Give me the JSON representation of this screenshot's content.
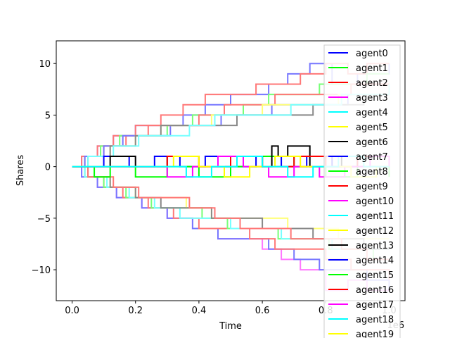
{
  "chart_data": {
    "type": "line",
    "xlabel": "Time",
    "ylabel": "Shares",
    "x_offset_text": "1e6",
    "xlim": [
      -0.05,
      1.05
    ],
    "ylim": [
      -13,
      12.2
    ],
    "x_ticks": [
      0.0,
      0.2,
      0.4,
      0.6,
      0.8,
      1.0
    ],
    "x_tick_labels": [
      "0.0",
      "0.2",
      "0.4",
      "0.6",
      "0.8",
      "1.0"
    ],
    "y_ticks": [
      10,
      5,
      0,
      -5,
      -10
    ],
    "y_tick_labels": [
      "10",
      "5",
      "0",
      "−5",
      "−10"
    ],
    "grid": false,
    "legend_position": "upper-right",
    "legend": [
      {
        "label": "agent0",
        "color": "#0000ff"
      },
      {
        "label": "agent1",
        "color": "#00ff00"
      },
      {
        "label": "agent2",
        "color": "#ff0000"
      },
      {
        "label": "agent3",
        "color": "#ff00ff"
      },
      {
        "label": "agent4",
        "color": "#00ffff"
      },
      {
        "label": "agent5",
        "color": "#ffff00"
      },
      {
        "label": "agent6",
        "color": "#000000"
      },
      {
        "label": "agent7",
        "color": "#0000ff"
      },
      {
        "label": "agent8",
        "color": "#00ff00"
      },
      {
        "label": "agent9",
        "color": "#ff0000"
      },
      {
        "label": "agent10",
        "color": "#ff00ff"
      },
      {
        "label": "agent11",
        "color": "#00ffff"
      },
      {
        "label": "agent12",
        "color": "#ffff00"
      },
      {
        "label": "agent13",
        "color": "#000000"
      },
      {
        "label": "agent14",
        "color": "#0000ff"
      },
      {
        "label": "agent15",
        "color": "#00ff00"
      },
      {
        "label": "agent16",
        "color": "#ff0000"
      },
      {
        "label": "agent17",
        "color": "#ff00ff"
      },
      {
        "label": "agent18",
        "color": "#00ffff"
      },
      {
        "label": "agent19",
        "color": "#ffff00"
      }
    ],
    "series": [
      {
        "color": "#7777ff",
        "x": [
          0.0,
          0.03,
          0.08,
          0.13,
          0.2,
          0.28,
          0.35,
          0.42,
          0.5,
          0.55,
          0.62,
          0.68,
          0.75,
          0.82,
          0.9,
          1.0
        ],
        "values": [
          0,
          1,
          2,
          3,
          4,
          4,
          5,
          6,
          7,
          7,
          8,
          9,
          10,
          8,
          9,
          10
        ]
      },
      {
        "color": "#ff7777",
        "x": [
          0.0,
          0.03,
          0.08,
          0.13,
          0.2,
          0.28,
          0.35,
          0.42,
          0.5,
          0.58,
          0.65,
          0.72,
          0.8,
          0.87,
          0.93,
          1.0
        ],
        "values": [
          0,
          1,
          2,
          3,
          4,
          5,
          6,
          7,
          7,
          8,
          8,
          9,
          10,
          9,
          10,
          10
        ]
      },
      {
        "color": "#77ff77",
        "x": [
          0.0,
          0.04,
          0.09,
          0.15,
          0.22,
          0.3,
          0.38,
          0.46,
          0.54,
          0.62,
          0.7,
          0.78,
          0.86,
          0.93,
          1.0
        ],
        "values": [
          0,
          1,
          2,
          3,
          3,
          4,
          5,
          5,
          6,
          7,
          7,
          8,
          8,
          9,
          9
        ]
      },
      {
        "color": "#ff7777",
        "x": [
          0.0,
          0.04,
          0.1,
          0.17,
          0.24,
          0.32,
          0.4,
          0.48,
          0.56,
          0.64,
          0.72,
          0.8,
          0.88,
          0.95,
          1.0
        ],
        "values": [
          0,
          1,
          2,
          3,
          4,
          4,
          5,
          6,
          6,
          7,
          7,
          7,
          8,
          8,
          8
        ]
      },
      {
        "color": "#7777ff",
        "x": [
          0.0,
          0.04,
          0.1,
          0.16,
          0.23,
          0.31,
          0.39,
          0.47,
          0.55,
          0.63,
          0.71,
          0.79,
          0.87,
          0.94,
          1.0
        ],
        "values": [
          0,
          1,
          2,
          3,
          3,
          4,
          4,
          5,
          5,
          6,
          6,
          6,
          7,
          7,
          7
        ]
      },
      {
        "color": "#ffff77",
        "x": [
          0.0,
          0.05,
          0.12,
          0.2,
          0.28,
          0.36,
          0.44,
          0.52,
          0.6,
          0.68,
          0.76,
          0.84,
          0.92,
          1.0
        ],
        "values": [
          0,
          1,
          2,
          3,
          4,
          4,
          5,
          5,
          6,
          6,
          6,
          7,
          7,
          7
        ]
      },
      {
        "color": "#888888",
        "x": [
          0.0,
          0.05,
          0.12,
          0.2,
          0.28,
          0.36,
          0.44,
          0.52,
          0.6,
          0.68,
          0.76,
          0.84,
          0.92,
          1.0
        ],
        "values": [
          0,
          1,
          2,
          3,
          4,
          4,
          4,
          5,
          5,
          5,
          6,
          6,
          7,
          7
        ]
      },
      {
        "color": "#77ffff",
        "x": [
          0.0,
          0.05,
          0.13,
          0.21,
          0.29,
          0.37,
          0.45,
          0.53,
          0.61,
          0.69,
          0.77,
          0.85,
          0.93,
          1.0
        ],
        "values": [
          0,
          1,
          2,
          3,
          3,
          4,
          5,
          5,
          5,
          6,
          6,
          7,
          7,
          8
        ]
      },
      {
        "color": "#ff77ff",
        "x": [
          0.0,
          0.03,
          0.08,
          0.14,
          0.22,
          0.3,
          0.38,
          0.46,
          0.54,
          0.6,
          0.66,
          0.72,
          0.8,
          0.87,
          0.93,
          1.0
        ],
        "values": [
          0,
          -1,
          -2,
          -3,
          -4,
          -5,
          -6,
          -7,
          -7,
          -8,
          -9,
          -10,
          -12,
          -11,
          -12,
          -12
        ]
      },
      {
        "color": "#7777ff",
        "x": [
          0.0,
          0.03,
          0.08,
          0.14,
          0.22,
          0.3,
          0.38,
          0.46,
          0.54,
          0.62,
          0.7,
          0.78,
          0.86,
          0.93,
          1.0
        ],
        "values": [
          0,
          -1,
          -2,
          -3,
          -4,
          -5,
          -6,
          -7,
          -7,
          -8,
          -9,
          -10,
          -10,
          -11,
          -12
        ]
      },
      {
        "color": "#ff7777",
        "x": [
          0.0,
          0.04,
          0.1,
          0.16,
          0.24,
          0.32,
          0.4,
          0.48,
          0.56,
          0.64,
          0.72,
          0.8,
          0.88,
          0.95,
          1.0
        ],
        "values": [
          0,
          -1,
          -2,
          -3,
          -4,
          -5,
          -6,
          -6,
          -7,
          -8,
          -8,
          -9,
          -10,
          -10,
          -11
        ]
      },
      {
        "color": "#77ff77",
        "x": [
          0.0,
          0.04,
          0.1,
          0.17,
          0.25,
          0.33,
          0.41,
          0.49,
          0.57,
          0.65,
          0.73,
          0.81,
          0.89,
          0.95,
          1.0
        ],
        "values": [
          0,
          -1,
          -2,
          -3,
          -4,
          -4,
          -5,
          -6,
          -6,
          -7,
          -7,
          -8,
          -8,
          -9,
          -9
        ]
      },
      {
        "color": "#77ffff",
        "x": [
          0.0,
          0.04,
          0.11,
          0.18,
          0.26,
          0.34,
          0.42,
          0.5,
          0.58,
          0.66,
          0.74,
          0.82,
          0.9,
          1.0
        ],
        "values": [
          0,
          -1,
          -2,
          -3,
          -4,
          -5,
          -5,
          -6,
          -6,
          -7,
          -7,
          -8,
          -8,
          -8
        ]
      },
      {
        "color": "#ffff77",
        "x": [
          0.0,
          0.05,
          0.12,
          0.2,
          0.28,
          0.36,
          0.44,
          0.52,
          0.6,
          0.68,
          0.76,
          0.84,
          0.92,
          1.0
        ],
        "values": [
          0,
          -1,
          -2,
          -3,
          -3,
          -4,
          -5,
          -5,
          -5,
          -6,
          -6,
          -7,
          -7,
          -7
        ]
      },
      {
        "color": "#888888",
        "x": [
          0.0,
          0.05,
          0.12,
          0.2,
          0.28,
          0.36,
          0.44,
          0.52,
          0.6,
          0.68,
          0.76,
          0.84,
          0.92,
          1.0
        ],
        "values": [
          0,
          -1,
          -2,
          -3,
          -4,
          -4,
          -5,
          -5,
          -6,
          -6,
          -7,
          -7,
          -8,
          -8
        ]
      },
      {
        "color": "#ff7777",
        "x": [
          0.0,
          0.05,
          0.13,
          0.21,
          0.29,
          0.37,
          0.45,
          0.53,
          0.61,
          0.69,
          0.77,
          0.85,
          0.93,
          1.0
        ],
        "values": [
          0,
          -1,
          -2,
          -3,
          -3,
          -4,
          -5,
          -6,
          -6,
          -7,
          -7,
          -8,
          -9,
          -9
        ]
      },
      {
        "color": "#0000ff",
        "x": [
          0.0,
          0.1,
          0.18,
          0.26,
          0.34,
          0.42,
          0.5,
          0.58,
          0.66,
          0.74,
          0.82,
          0.9,
          1.0
        ],
        "values": [
          0,
          1,
          0,
          1,
          0,
          1,
          0,
          1,
          0,
          1,
          0,
          1,
          0
        ]
      },
      {
        "color": "#00ff00",
        "x": [
          0.0,
          0.07,
          0.12,
          0.2,
          0.3,
          0.4,
          0.5,
          0.6,
          0.7,
          0.8,
          0.9,
          1.0
        ],
        "values": [
          0,
          -1,
          0,
          -1,
          0,
          -1,
          0,
          1,
          0,
          -1,
          0,
          -1
        ]
      },
      {
        "color": "#000000",
        "x": [
          0.0,
          0.12,
          0.2,
          0.3,
          0.4,
          0.5,
          0.6,
          0.63,
          0.65,
          0.68,
          0.75,
          0.85,
          1.0
        ],
        "values": [
          0,
          1,
          0,
          1,
          0,
          1,
          0,
          2,
          1,
          2,
          0,
          1,
          0
        ]
      },
      {
        "color": "#ff0000",
        "x": [
          0.0,
          0.2,
          0.3,
          0.4,
          0.5,
          0.6,
          0.7,
          0.8,
          0.9,
          1.0
        ],
        "values": [
          0,
          0,
          1,
          0,
          1,
          0,
          1,
          0,
          1,
          0
        ]
      },
      {
        "color": "#ff00ff",
        "x": [
          0.0,
          0.22,
          0.3,
          0.38,
          0.46,
          0.54,
          0.62,
          0.7,
          0.78,
          0.86,
          0.94,
          1.0
        ],
        "values": [
          0,
          0,
          -1,
          0,
          1,
          0,
          -1,
          0,
          -1,
          0,
          1,
          0
        ]
      },
      {
        "color": "#ffff00",
        "x": [
          0.0,
          0.25,
          0.32,
          0.4,
          0.48,
          0.56,
          0.64,
          0.72,
          0.8,
          0.88,
          0.96,
          1.0
        ],
        "values": [
          0,
          0,
          1,
          0,
          -1,
          0,
          1,
          0,
          0,
          -1,
          0,
          0
        ]
      },
      {
        "color": "#00ffff",
        "x": [
          0.0,
          0.28,
          0.36,
          0.44,
          0.52,
          0.6,
          0.68,
          0.76,
          0.84,
          0.92,
          1.0
        ],
        "values": [
          0,
          0,
          -1,
          0,
          1,
          0,
          -1,
          0,
          1,
          0,
          0
        ]
      }
    ]
  }
}
